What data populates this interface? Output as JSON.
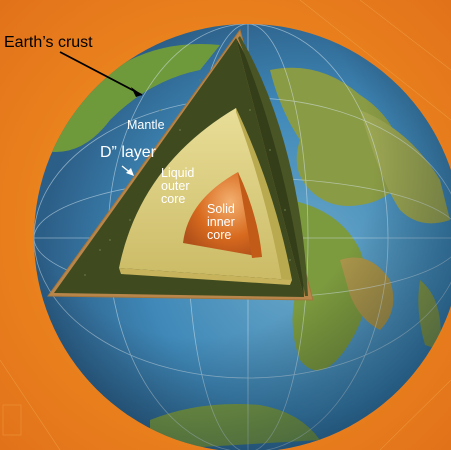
{
  "labels": {
    "crust": "Earth’s crust",
    "mantle": "Mantle",
    "d_layer": "D” layer",
    "liquid_outer_core": [
      "Liquid",
      "outer",
      "core"
    ],
    "solid_inner_core": [
      "Solid",
      "inner",
      "core"
    ]
  },
  "colors": {
    "background": "#f08a18",
    "ocean": "#3a8fbf",
    "land": "#7a9a3a",
    "crust": "#b8864a",
    "mantle": "#3f4b1f",
    "outer_core": "#d4c572",
    "inner_core": "#d86a1e"
  }
}
